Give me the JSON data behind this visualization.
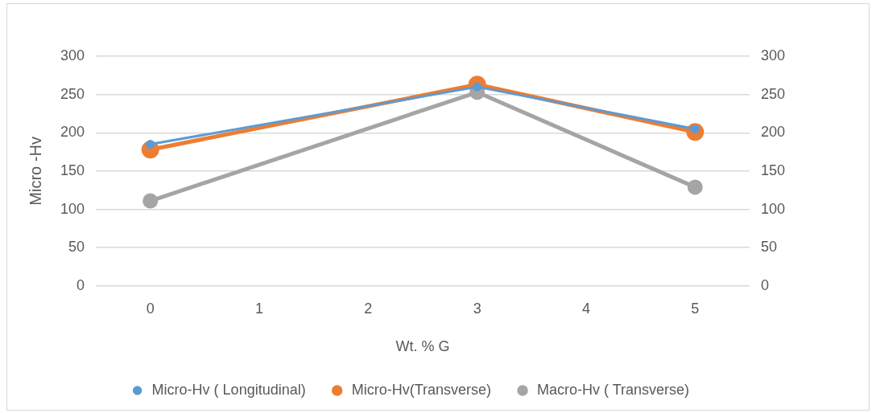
{
  "chart_data": {
    "type": "line",
    "xlabel": "Wt. % G",
    "ylabel": "Micro -Hv",
    "x": [
      0,
      3,
      5
    ],
    "xlim": [
      -0.5,
      5.5
    ],
    "xticks": [
      0,
      1,
      2,
      3,
      4,
      5
    ],
    "ylim": [
      0,
      300
    ],
    "yticks": [
      0,
      50,
      100,
      150,
      200,
      250,
      300
    ],
    "y2lim": [
      0,
      300
    ],
    "y2ticks": [
      0,
      50,
      100,
      150,
      200,
      250,
      300
    ],
    "series": [
      {
        "name": "Micro-Hv ( Longitudinal)",
        "color": "#5b9bd5",
        "values": [
          185,
          260,
          205
        ]
      },
      {
        "name": "Micro-Hv(Transverse)",
        "color": "#ed7d31",
        "values": [
          178,
          263,
          201
        ]
      },
      {
        "name": "Macro-Hv ( Transverse)",
        "color": "#a5a5a5",
        "values": [
          111,
          253,
          129
        ]
      }
    ],
    "grid": "y",
    "legend": "bottom",
    "marker": "circle",
    "line_style": "solid"
  }
}
